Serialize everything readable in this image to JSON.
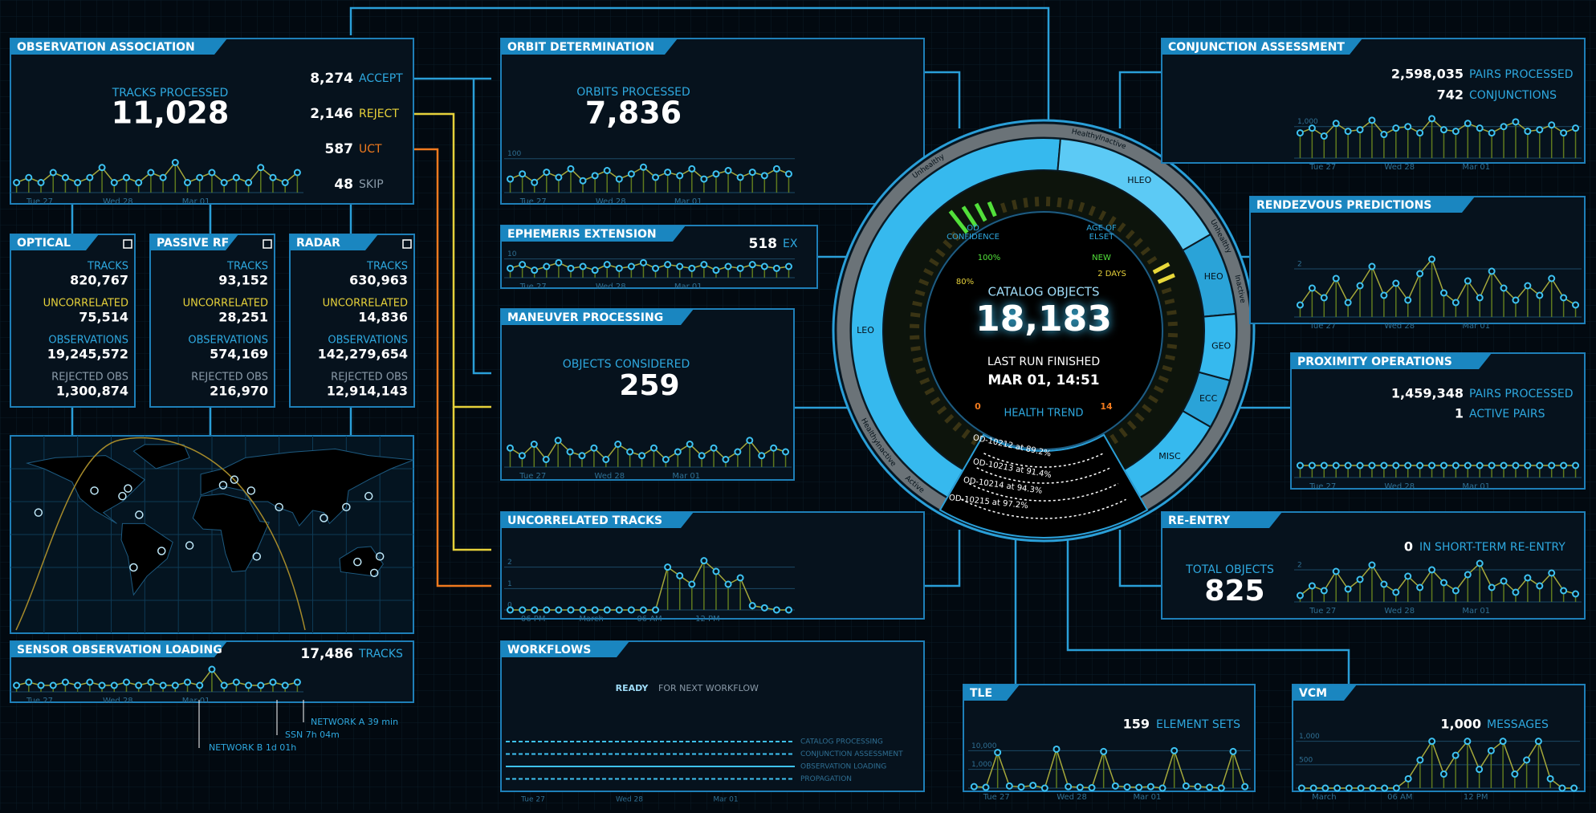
{
  "observation_association": {
    "title": "OBSERVATION ASSOCIATION",
    "tracks_label": "TRACKS PROCESSED",
    "tracks": "11,028",
    "outcomes": [
      {
        "count": "8,274",
        "label": "ACCEPT"
      },
      {
        "count": "2,146",
        "label": "REJECT"
      },
      {
        "count": "587",
        "label": "UCT"
      },
      {
        "count": "48",
        "label": "SKIP"
      }
    ],
    "trend": {
      "values": [
        2,
        3,
        2,
        4,
        3,
        2,
        3,
        5,
        2,
        3,
        2,
        4,
        3,
        6,
        2,
        3,
        4,
        2,
        3,
        2,
        5,
        3,
        2,
        4
      ],
      "ylim": [
        0,
        8
      ],
      "xlabels": [
        "Tue 27",
        "Wed 28",
        "Mar 01"
      ]
    }
  },
  "sensors": [
    {
      "title": "OPTICAL",
      "rows": [
        {
          "label": "TRACKS",
          "value": "820,767"
        },
        {
          "label": "UNCORRELATED",
          "value": "75,514"
        },
        {
          "label": "OBSERVATIONS",
          "value": "19,245,572"
        },
        {
          "label": "REJECTED OBS",
          "value": "1,300,874"
        }
      ]
    },
    {
      "title": "PASSIVE RF",
      "rows": [
        {
          "label": "TRACKS",
          "value": "93,152"
        },
        {
          "label": "UNCORRELATED",
          "value": "28,251"
        },
        {
          "label": "OBSERVATIONS",
          "value": "574,169"
        },
        {
          "label": "REJECTED OBS",
          "value": "216,970"
        }
      ]
    },
    {
      "title": "RADAR",
      "rows": [
        {
          "label": "TRACKS",
          "value": "630,963"
        },
        {
          "label": "UNCORRELATED",
          "value": "14,836"
        },
        {
          "label": "OBSERVATIONS",
          "value": "142,279,654"
        },
        {
          "label": "REJECTED OBS",
          "value": "12,914,143"
        }
      ]
    }
  ],
  "sensor_observation_loading": {
    "title": "SENSOR OBSERVATION LOADING",
    "count": "17,486",
    "unit": "TRACKS",
    "annotations": [
      "NETWORK A 39 min",
      "SSN 7h 04m",
      "NETWORK B 1d 01h"
    ],
    "trend": {
      "values": [
        2,
        3,
        2,
        2,
        3,
        2,
        3,
        2,
        2,
        3,
        2,
        3,
        2,
        2,
        3,
        2,
        7,
        2,
        3,
        2,
        2,
        3,
        2,
        3
      ],
      "ylim": [
        0,
        8
      ],
      "xlabels": [
        "Tue 27",
        "Wed 28",
        "Mar 01"
      ]
    }
  },
  "orbit_determination": {
    "title": "ORBIT DETERMINATION",
    "label": "ORBITS PROCESSED",
    "value": "7,836",
    "trend": {
      "values": [
        40,
        55,
        30,
        60,
        45,
        70,
        35,
        50,
        65,
        40,
        55,
        75,
        45,
        60,
        50,
        70,
        40,
        55,
        65,
        45,
        60,
        50,
        70,
        55
      ],
      "ylim": [
        0,
        130
      ],
      "yticks": [
        100
      ],
      "xlabels": [
        "Tue 27",
        "Wed 28",
        "Mar 01"
      ]
    }
  },
  "ephemeris_extension": {
    "title": "EPHEMERIS EXTENSION",
    "value": "518",
    "unit": "EX",
    "trend": {
      "values": [
        5,
        7,
        4,
        6,
        8,
        5,
        6,
        4,
        7,
        5,
        6,
        8,
        5,
        7,
        6,
        5,
        7,
        4,
        6,
        5,
        7,
        6,
        5,
        6
      ],
      "ylim": [
        0,
        12
      ],
      "yticks": [
        10
      ],
      "xlabels": [
        "Tue 27",
        "Wed 28",
        "Mar 01"
      ]
    }
  },
  "maneuver_processing": {
    "title": "MANEUVER PROCESSING",
    "label": "OBJECTS CONSIDERED",
    "value": "259",
    "trend": {
      "values": [
        5,
        3,
        6,
        2,
        7,
        4,
        3,
        5,
        2,
        6,
        4,
        3,
        5,
        2,
        4,
        6,
        3,
        5,
        2,
        4,
        7,
        3,
        5,
        4
      ],
      "ylim": [
        0,
        12
      ],
      "xlabels": [
        "Tue 27",
        "Wed 28",
        "Mar 01"
      ]
    }
  },
  "uncorrelated_tracks": {
    "title": "UNCORRELATED TRACKS",
    "trend": {
      "values": [
        0,
        0,
        0,
        0,
        0,
        0,
        0,
        0,
        0,
        0,
        0,
        0,
        0,
        2,
        1.6,
        1.2,
        2.3,
        1.8,
        1.2,
        1.5,
        0.2,
        0.1,
        0,
        0
      ],
      "ylim": [
        0,
        3
      ],
      "yticks": [
        0,
        1,
        2
      ],
      "xlabels": [
        "06 PM",
        "March",
        "06 AM",
        "12 PM"
      ]
    }
  },
  "workflows": {
    "title": "WORKFLOWS",
    "status": "READY",
    "status_note": "FOR NEXT WORKFLOW",
    "rows": [
      "CATALOG PROCESSING",
      "CONJUNCTION ASSESSMENT",
      "OBSERVATION LOADING",
      "PROPAGATION"
    ],
    "xlabels": [
      "Tue 27",
      "Wed 28",
      "Mar 01"
    ]
  },
  "catalog": {
    "label": "CATALOG OBJECTS",
    "value": "18,183",
    "run_label": "LAST RUN FINISHED",
    "run": "MAR 01, 14:51",
    "health_label": "HEALTH TREND",
    "health_runs": [
      "OD-10212 at 89.2%",
      "OD-10213 at 91.4%",
      "OD-10214 at 94.3%",
      "OD-10215 at 97.2%"
    ],
    "od_confidence": {
      "label": [
        "OD",
        "CONFIDENCE"
      ],
      "ticks": [
        "100%",
        "80%"
      ]
    },
    "elset_age": {
      "label": [
        "AGE OF",
        "ELSET"
      ],
      "ticks": [
        "NEW",
        "2 DAYS"
      ]
    },
    "scale_ends": [
      "0",
      "14"
    ],
    "regimes": [
      {
        "name": "LEO",
        "share": 155
      },
      {
        "name": "HLEO",
        "share": 55
      },
      {
        "name": "HEO",
        "share": 25
      },
      {
        "name": "GEO",
        "share": 20
      },
      {
        "name": "ECC",
        "share": 15
      },
      {
        "name": "MISC",
        "share": 30
      }
    ],
    "status_ring": [
      "Unhealthy",
      "Healthy",
      "Inactive",
      "Unhealthy",
      "Inactive",
      "Active",
      "Inactive",
      "Healthy"
    ]
  },
  "conjunction_assessment": {
    "title": "CONJUNCTION ASSESSMENT",
    "pairs": "2,598,035",
    "pairs_label": "PAIRS PROCESSED",
    "conjunctions": "742",
    "conjunctions_label": "CONJUNCTIONS",
    "trend": {
      "values": [
        800,
        950,
        700,
        1100,
        850,
        900,
        1200,
        750,
        950,
        1000,
        800,
        1250,
        900,
        850,
        1100,
        950,
        800,
        1000,
        1150,
        850,
        900,
        1050,
        800,
        950
      ],
      "ylim": [
        0,
        1400
      ],
      "yticks": [
        {
          "value": 1000,
          "label": "1,000"
        }
      ],
      "xlabels": [
        "Tue 27",
        "Wed 28",
        "Mar 01"
      ]
    }
  },
  "rendezvous_predictions": {
    "title": "RENDEZVOUS PREDICTIONS",
    "trend": {
      "values": [
        0.5,
        1.2,
        0.8,
        1.6,
        0.6,
        1.3,
        2.1,
        0.9,
        1.4,
        0.7,
        1.8,
        2.4,
        1.0,
        0.6,
        1.5,
        0.8,
        1.9,
        1.2,
        0.7,
        1.3,
        0.9,
        1.6,
        0.8,
        0.5
      ],
      "ylim": [
        0,
        3
      ],
      "yticks": [
        2
      ],
      "xlabels": [
        "Tue 27",
        "Wed 28",
        "Mar 01"
      ]
    }
  },
  "proximity_operations": {
    "title": "PROXIMITY OPERATIONS",
    "pairs": "1,459,348",
    "pairs_label": "PAIRS PROCESSED",
    "active": "1",
    "active_label": "ACTIVE PAIRS",
    "trend": {
      "values": [
        1,
        1,
        1,
        1,
        1,
        1,
        1,
        1,
        1,
        1,
        1,
        1,
        1,
        1,
        1,
        1,
        1,
        1,
        1,
        1,
        1,
        1,
        1,
        1
      ],
      "ylim": [
        0,
        3
      ],
      "xlabels": [
        "Tue 27",
        "Wed 28",
        "Mar 01"
      ]
    }
  },
  "re_entry": {
    "title": "RE-ENTRY",
    "short_term": "0",
    "short_term_label": "IN SHORT-TERM RE-ENTRY",
    "total_label": "TOTAL OBJECTS",
    "total": "825",
    "trend": {
      "values": [
        0.4,
        1.0,
        0.7,
        1.9,
        0.8,
        1.4,
        2.3,
        1.1,
        0.6,
        1.6,
        0.9,
        2.0,
        1.2,
        0.7,
        1.7,
        2.4,
        0.9,
        1.3,
        0.6,
        1.5,
        1.0,
        1.8,
        0.7,
        0.5
      ],
      "ylim": [
        0,
        3
      ],
      "yticks": [
        2
      ],
      "xlabels": [
        "Tue 27",
        "Wed 28",
        "Mar 01"
      ]
    }
  },
  "tle": {
    "title": "TLE",
    "value": "159",
    "unit": "ELEMENT SETS",
    "trend": {
      "values": [
        120,
        110,
        8000,
        130,
        115,
        140,
        100,
        12000,
        120,
        110,
        105,
        9000,
        130,
        115,
        110,
        120,
        100,
        10000,
        130,
        120,
        110,
        100,
        9000,
        120
      ],
      "log": true,
      "ylim": [
        100,
        100000
      ],
      "yticks": [
        {
          "value": 10000,
          "label": "10,000"
        },
        {
          "value": 1000,
          "label": "1,000"
        }
      ],
      "xlabels": [
        "Tue 27",
        "Wed 28",
        "Mar 01"
      ]
    }
  },
  "vcm": {
    "title": "VCM",
    "value": "1,000",
    "unit": "MESSAGES",
    "trend": {
      "values": [
        0,
        0,
        0,
        0,
        0,
        0,
        0,
        0,
        0,
        200,
        600,
        1000,
        300,
        700,
        1000,
        400,
        800,
        1000,
        300,
        600,
        1000,
        200,
        0,
        0
      ],
      "ylim": [
        0,
        1200
      ],
      "yticks": [
        {
          "value": 1000,
          "label": "1,000"
        },
        500
      ],
      "xlabels": [
        "March",
        "06 AM",
        "12 PM"
      ]
    }
  }
}
